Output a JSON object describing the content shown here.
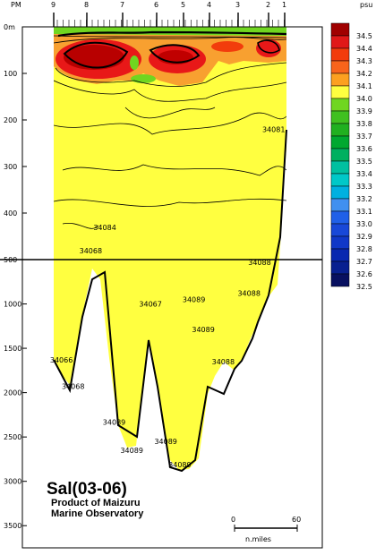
{
  "chart_data": {
    "type": "heatmap",
    "title": "Sal(03-06)",
    "credit_line1": "Product of Maizuru",
    "credit_line2": "Marine Observatory",
    "top_axis_label": "PM",
    "y_unit_label": "0m",
    "stations": [
      "9",
      "8",
      "7",
      "6",
      "5",
      "4",
      "3",
      "2",
      "1"
    ],
    "y_ticks": [
      {
        "label": "0m",
        "value": 0
      },
      {
        "label": "100",
        "value": 100
      },
      {
        "label": "200",
        "value": 200
      },
      {
        "label": "300",
        "value": 300
      },
      {
        "label": "400",
        "value": 400
      },
      {
        "label": "500",
        "value": 500
      },
      {
        "label": "1000",
        "value": 1000
      },
      {
        "label": "1500",
        "value": 1500
      },
      {
        "label": "2000",
        "value": 2000
      },
      {
        "label": "2500",
        "value": 2500
      },
      {
        "label": "3000",
        "value": 3000
      },
      {
        "label": "3500",
        "value": 3500
      }
    ],
    "ylim": [
      0,
      3750
    ],
    "scale_break_depth": 500,
    "colorbar": {
      "unit": "psu",
      "levels": [
        "34.5",
        "34.4",
        "34.3",
        "34.2",
        "34.1",
        "34.0",
        "33.9",
        "33.8",
        "33.7",
        "33.6",
        "33.5",
        "33.4",
        "33.3",
        "33.2",
        "33.1",
        "33.0",
        "32.9",
        "32.8",
        "32.7",
        "32.6",
        "32.5"
      ],
      "colors": [
        "#a00000",
        "#e01818",
        "#f23c0c",
        "#f8641c",
        "#fca020",
        "#ffff40",
        "#70d620",
        "#40c020",
        "#20b020",
        "#00a830",
        "#00b060",
        "#00c0a0",
        "#00c8c8",
        "#00b0e0",
        "#4090f0",
        "#2060e8",
        "#1848d8",
        "#1038c8",
        "#0828b0",
        "#082090",
        "#081060"
      ]
    },
    "bottom_markers": [
      {
        "station_x": 0.03,
        "depth_m": 1680,
        "label": "34066"
      },
      {
        "station_x": 0.08,
        "depth_m": 1980,
        "label": "34068"
      },
      {
        "station_x": 0.155,
        "depth_m": 490,
        "label": "34068"
      },
      {
        "station_x": 0.215,
        "depth_m": 440,
        "label": "34084"
      },
      {
        "station_x": 0.255,
        "depth_m": 2380,
        "label": "34089"
      },
      {
        "station_x": 0.33,
        "depth_m": 2700,
        "label": "34089"
      },
      {
        "station_x": 0.41,
        "depth_m": 1050,
        "label": "34067"
      },
      {
        "station_x": 0.475,
        "depth_m": 2600,
        "label": "34089"
      },
      {
        "station_x": 0.535,
        "depth_m": 2860,
        "label": "34089"
      },
      {
        "station_x": 0.595,
        "depth_m": 1000,
        "label": "34089"
      },
      {
        "station_x": 0.635,
        "depth_m": 1340,
        "label": "34089"
      },
      {
        "station_x": 0.72,
        "depth_m": 1700,
        "label": "34088"
      },
      {
        "station_x": 0.83,
        "depth_m": 930,
        "label": "34088"
      },
      {
        "station_x": 0.875,
        "depth_m": 580,
        "label": "34088"
      },
      {
        "station_x": 0.935,
        "depth_m": 230,
        "label": "34081"
      }
    ],
    "distance_scale": {
      "start": "0",
      "end": "60",
      "unit": "n.miles"
    }
  }
}
